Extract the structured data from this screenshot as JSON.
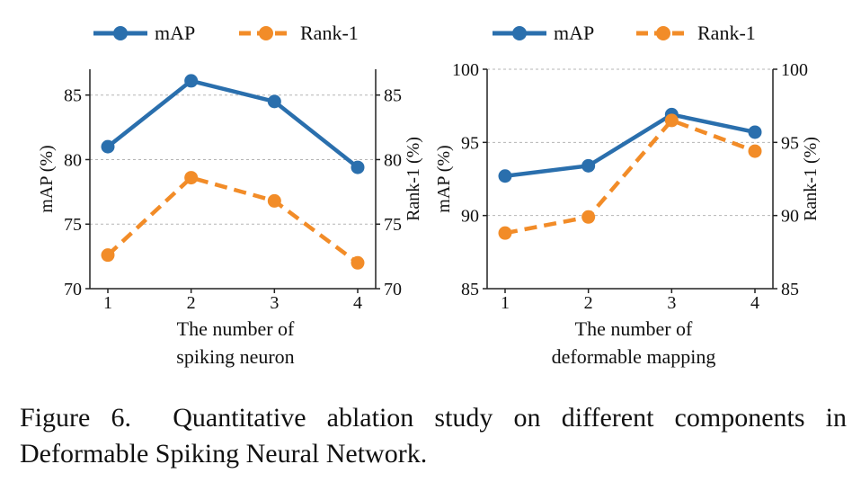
{
  "colors": {
    "map": "#2a6fad",
    "rank1": "#f28c28",
    "grid": "#b5b5b5",
    "axis": "#222222"
  },
  "legend": {
    "map_label": "mAP",
    "rank1_label": "Rank-1"
  },
  "chart_data": [
    {
      "type": "line",
      "categories": [
        "1",
        "2",
        "3",
        "4"
      ],
      "xlabel_lines": [
        "The number of",
        "spiking neuron"
      ],
      "ylabel": "mAP (%)",
      "ylabel_right": "Rank-1 (%)",
      "ylim": [
        70,
        87
      ],
      "ylim_right": [
        70,
        87
      ],
      "yticks": [
        "70",
        "75",
        "80",
        "85"
      ],
      "yticks_right": [
        "70",
        "75",
        "80",
        "85"
      ],
      "grid": "horizontal dashed",
      "series": [
        {
          "name": "mAP",
          "values": [
            81.0,
            86.1,
            84.5,
            79.4
          ],
          "style": "solid"
        },
        {
          "name": "Rank-1",
          "values": [
            72.6,
            78.6,
            76.8,
            72.0
          ],
          "style": "dashed"
        }
      ]
    },
    {
      "type": "line",
      "categories": [
        "1",
        "2",
        "3",
        "4"
      ],
      "xlabel_lines": [
        "The number of",
        "deformable mapping"
      ],
      "ylabel": "mAP (%)",
      "ylabel_right": "Rank-1 (%)",
      "ylim": [
        85,
        100
      ],
      "ylim_right": [
        85,
        100
      ],
      "yticks": [
        "85",
        "90",
        "95",
        "100"
      ],
      "yticks_right": [
        "85",
        "90",
        "95",
        "100"
      ],
      "grid": "horizontal dashed",
      "series": [
        {
          "name": "mAP",
          "values": [
            92.7,
            93.4,
            96.9,
            95.7
          ],
          "style": "solid"
        },
        {
          "name": "Rank-1",
          "values": [
            88.8,
            89.9,
            96.5,
            94.4
          ],
          "style": "dashed"
        }
      ]
    }
  ],
  "caption": {
    "label": "Figure 6.",
    "text": "Quantitative ablation study on different components in Deformable Spiking Neural Network."
  }
}
